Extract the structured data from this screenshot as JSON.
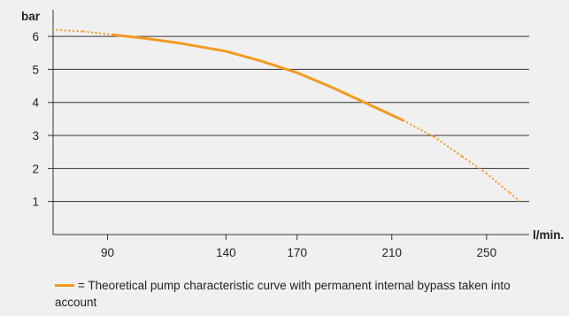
{
  "chart_data": {
    "type": "line",
    "ylabel": "bar",
    "xlabel": "l/min.",
    "xlim": [
      67,
      268
    ],
    "ylim": [
      0,
      6.7
    ],
    "x_ticks": [
      90,
      140,
      170,
      210,
      250
    ],
    "y_ticks": [
      1,
      2,
      3,
      4,
      5,
      6
    ],
    "grid": "horizontal",
    "color": "#f39a1f",
    "series": [
      {
        "points": [
          {
            "x": 67,
            "y": 6.2,
            "style": "dotted"
          },
          {
            "x": 80,
            "y": 6.15,
            "style": "dotted"
          },
          {
            "x": 92,
            "y": 6.05,
            "style": "solid"
          },
          {
            "x": 105,
            "y": 5.95,
            "style": "solid"
          },
          {
            "x": 120,
            "y": 5.8,
            "style": "solid"
          },
          {
            "x": 140,
            "y": 5.55,
            "style": "solid"
          },
          {
            "x": 155,
            "y": 5.25,
            "style": "solid"
          },
          {
            "x": 170,
            "y": 4.9,
            "style": "solid"
          },
          {
            "x": 185,
            "y": 4.45,
            "style": "solid"
          },
          {
            "x": 200,
            "y": 3.95,
            "style": "solid"
          },
          {
            "x": 215,
            "y": 3.45,
            "style": "solid"
          },
          {
            "x": 228,
            "y": 2.95,
            "style": "dotted"
          },
          {
            "x": 240,
            "y": 2.35,
            "style": "dotted"
          },
          {
            "x": 250,
            "y": 1.85,
            "style": "dotted"
          },
          {
            "x": 260,
            "y": 1.25,
            "style": "dotted"
          },
          {
            "x": 265,
            "y": 0.95,
            "style": "dotted"
          }
        ]
      }
    ]
  },
  "legend": {
    "text": "= Theoretical pump characteristic curve with permanent internal bypass taken into account"
  }
}
